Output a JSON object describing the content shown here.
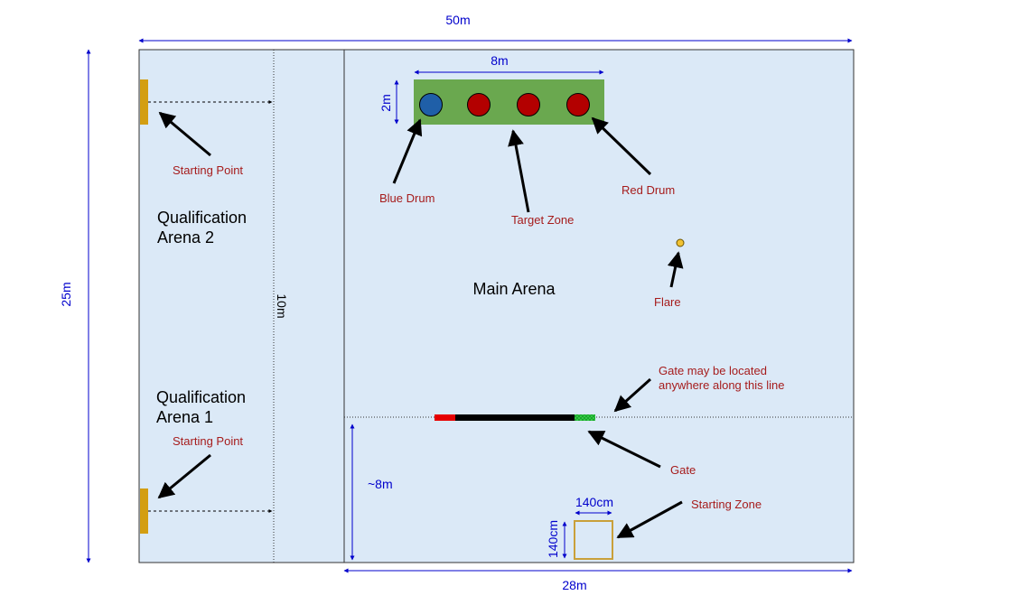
{
  "dimensions": {
    "total_width": "50m",
    "total_height": "25m",
    "main_width": "28m",
    "lane_width": "10m",
    "target_width": "8m",
    "target_height": "2m",
    "gate_distance": "~8m",
    "start_zone_width": "140cm",
    "start_zone_height": "140cm"
  },
  "areas": {
    "qual2_line1": "Qualification",
    "qual2_line2": "Arena 2",
    "qual1_line1": "Qualification",
    "qual1_line2": "Arena 1",
    "main": "Main Arena"
  },
  "labels": {
    "starting_point_top": "Starting Point",
    "starting_point_bottom": "Starting Point",
    "blue_drum": "Blue Drum",
    "target_zone": "Target Zone",
    "red_drum": "Red Drum",
    "flare": "Flare",
    "gate_note_line1": "Gate may be located",
    "gate_note_line2": "anywhere along this line",
    "gate": "Gate",
    "starting_zone": "Starting Zone"
  },
  "colors": {
    "arena_fill": "#dbe9f7",
    "target_zone": "#6aa84f",
    "blue_drum": "#1f5fa8",
    "red_drum": "#b30000",
    "gate_body": "#000000",
    "gate_red_end": "#e60000",
    "gate_green_end": "#2ecc40",
    "starting_point": "#d39e11",
    "flare": "#f1c232",
    "starting_zone_border": "#c9a03a",
    "dimension": "#0000cc",
    "label": "#a61c1c"
  }
}
